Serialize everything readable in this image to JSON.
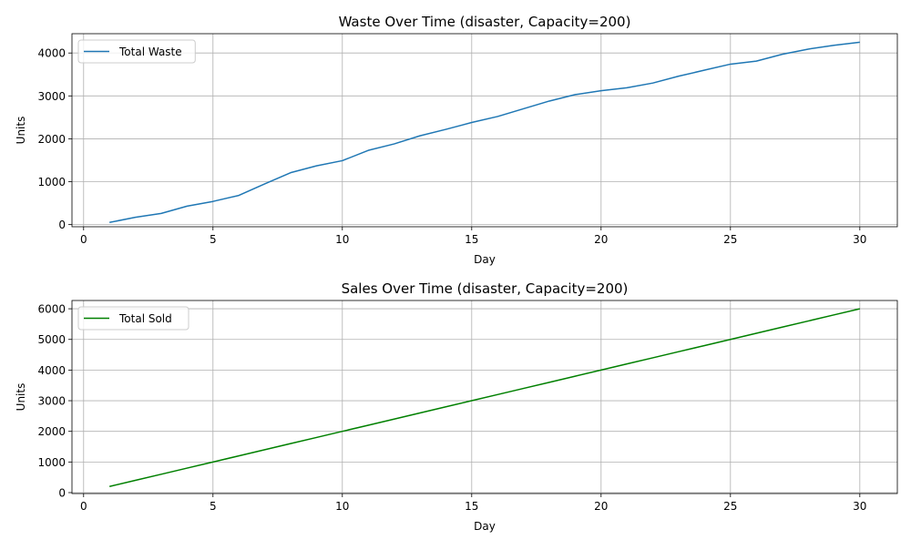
{
  "chart_data": [
    {
      "type": "line",
      "title": "Waste Over Time (disaster, Capacity=200)",
      "xlabel": "Day",
      "ylabel": "Units",
      "xlim": [
        -0.45,
        31.45
      ],
      "ylim": [
        -50,
        4450
      ],
      "xticks": [
        0,
        5,
        10,
        15,
        20,
        25,
        30
      ],
      "yticks": [
        0,
        1000,
        2000,
        3000,
        4000
      ],
      "grid": true,
      "legend_position": "top-left",
      "series": [
        {
          "name": "Total Waste",
          "color": "#1f77b4",
          "x": [
            1,
            2,
            3,
            4,
            5,
            6,
            7,
            8,
            9,
            10,
            11,
            12,
            13,
            14,
            15,
            16,
            17,
            18,
            19,
            20,
            21,
            22,
            23,
            24,
            25,
            26,
            27,
            28,
            29,
            30
          ],
          "y": [
            50,
            170,
            260,
            430,
            540,
            680,
            950,
            1210,
            1370,
            1490,
            1730,
            1880,
            2070,
            2220,
            2380,
            2520,
            2700,
            2880,
            3030,
            3120,
            3190,
            3300,
            3460,
            3600,
            3740,
            3810,
            3970,
            4090,
            4180,
            4250
          ]
        }
      ]
    },
    {
      "type": "line",
      "title": "Sales Over Time (disaster, Capacity=200)",
      "xlabel": "Day",
      "ylabel": "Units",
      "xlim": [
        -0.45,
        31.45
      ],
      "ylim": [
        -30,
        6270
      ],
      "xticks": [
        0,
        5,
        10,
        15,
        20,
        25,
        30
      ],
      "yticks": [
        0,
        1000,
        2000,
        3000,
        4000,
        5000,
        6000
      ],
      "grid": true,
      "legend_position": "top-left",
      "series": [
        {
          "name": "Total Sold",
          "color": "#008000",
          "x": [
            1,
            2,
            3,
            4,
            5,
            6,
            7,
            8,
            9,
            10,
            11,
            12,
            13,
            14,
            15,
            16,
            17,
            18,
            19,
            20,
            21,
            22,
            23,
            24,
            25,
            26,
            27,
            28,
            29,
            30
          ],
          "y": [
            200,
            400,
            600,
            800,
            1000,
            1200,
            1400,
            1600,
            1800,
            2000,
            2200,
            2400,
            2600,
            2800,
            3000,
            3200,
            3400,
            3600,
            3800,
            4000,
            4200,
            4400,
            4600,
            4800,
            5000,
            5200,
            5400,
            5600,
            5800,
            6000
          ]
        }
      ]
    }
  ]
}
